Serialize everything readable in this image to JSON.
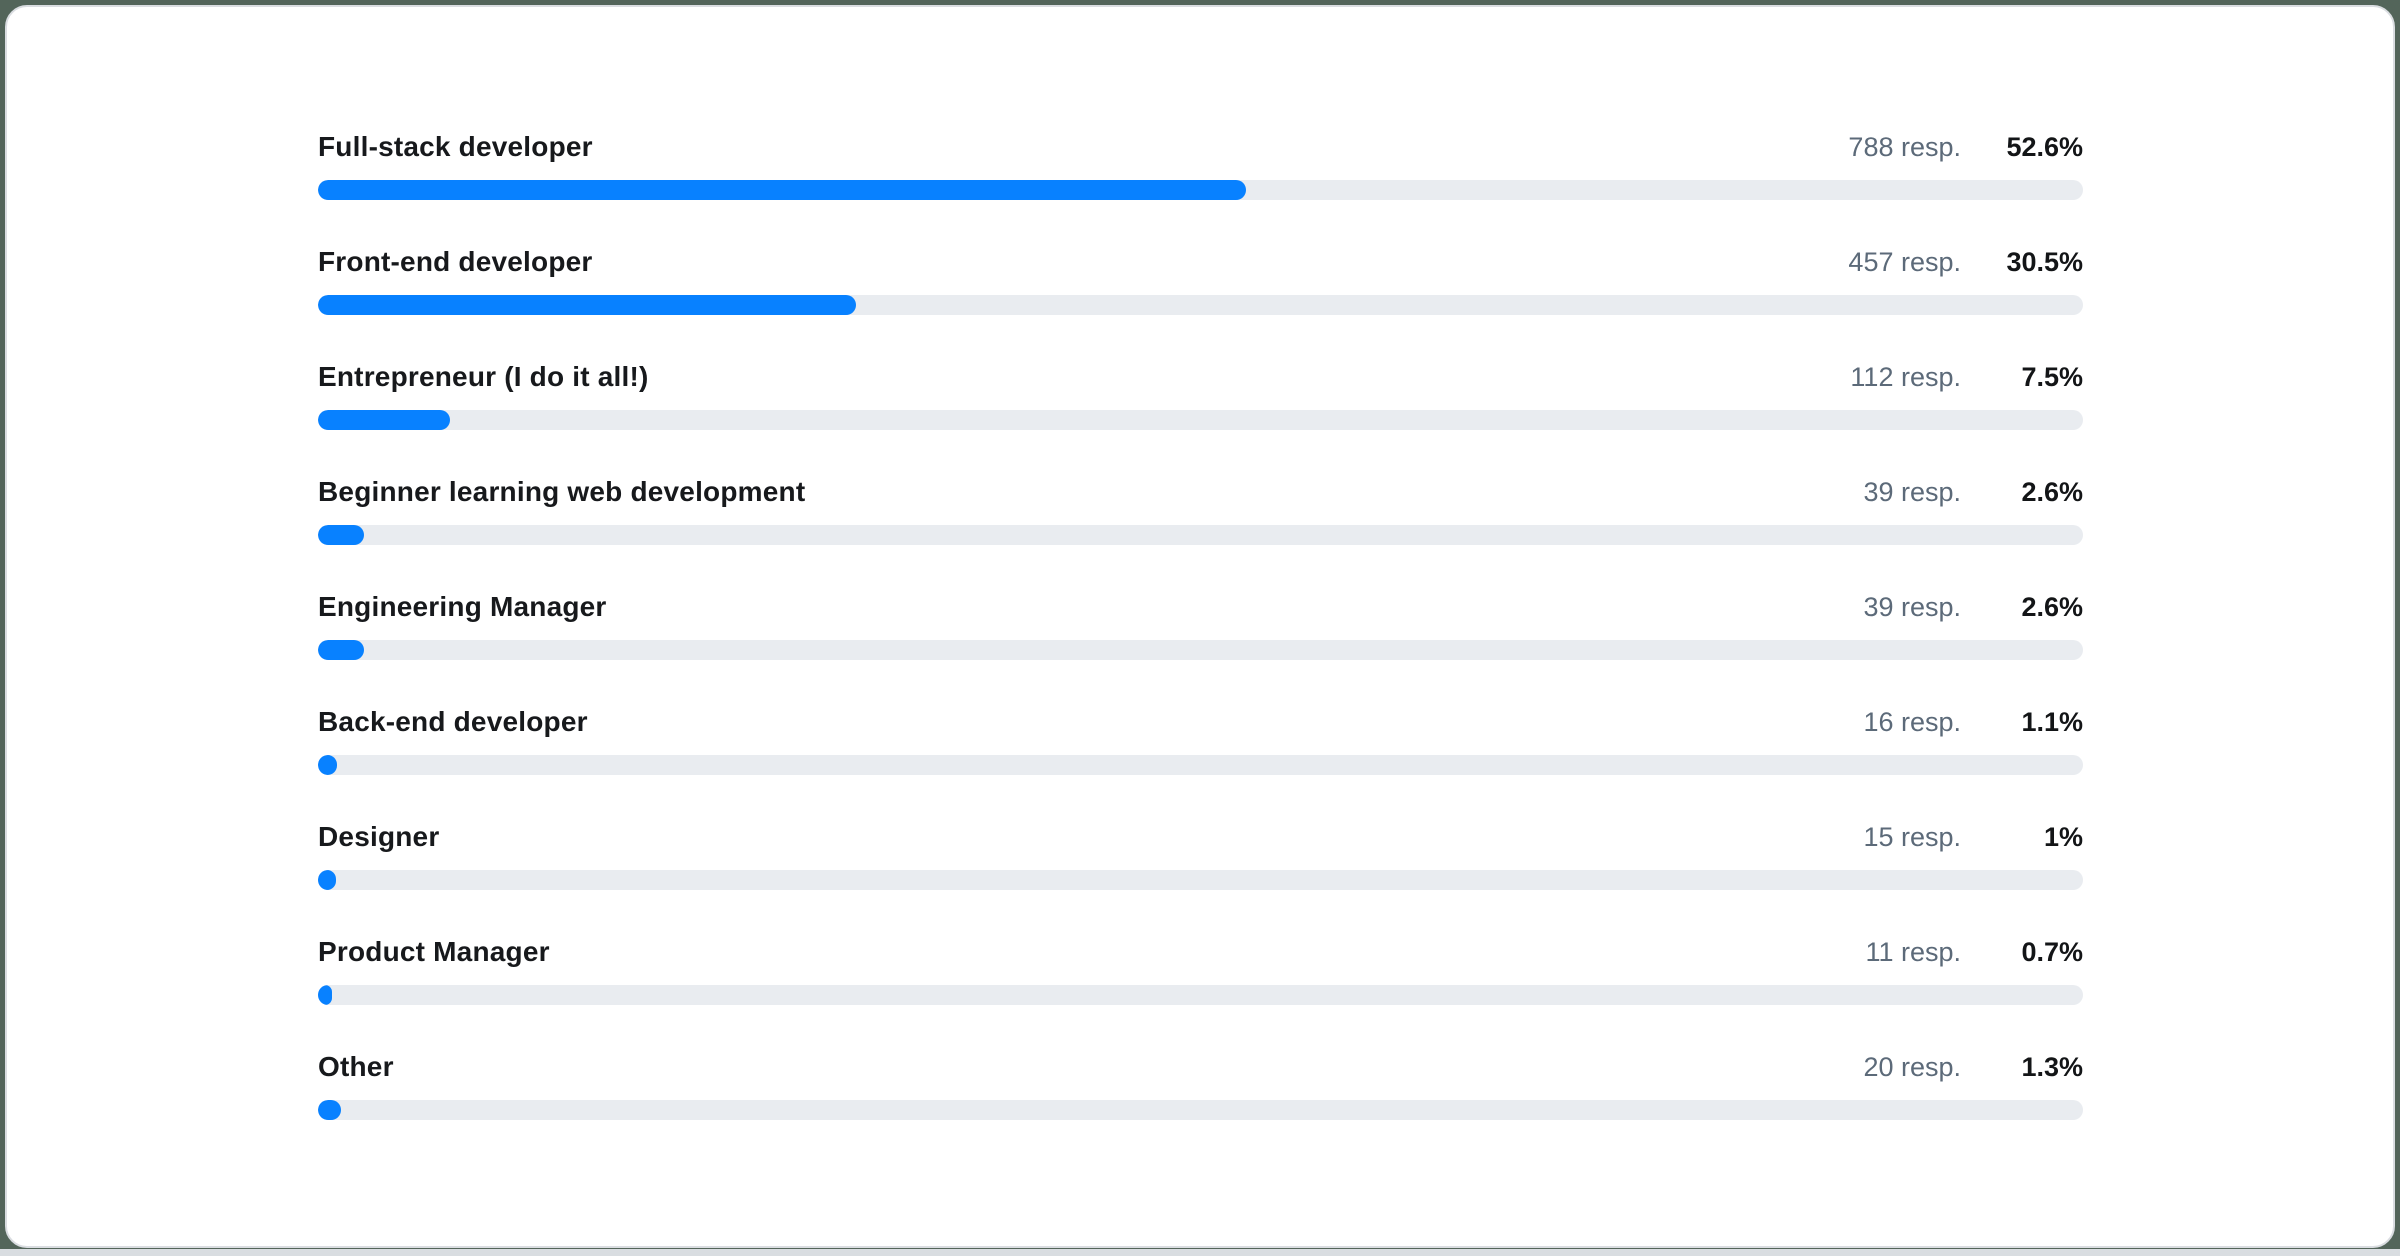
{
  "page": {
    "background_color": "#53655a",
    "card_background": "#ffffff",
    "card_border_color": "#dadde1",
    "bottom_strip_color": "#d9dde1"
  },
  "chart_data": {
    "type": "bar",
    "orientation": "horizontal",
    "title": "",
    "xlabel": "",
    "ylabel": "",
    "value_range": [
      0,
      100
    ],
    "grid": false,
    "legend": false,
    "value_suffix": "%",
    "count_suffix": " resp.",
    "colors": {
      "bar_fill": "#0881ff",
      "bar_track": "#e9ecf0",
      "label_text": "#17191c",
      "count_text": "#5c6a79",
      "percent_text": "#131517"
    },
    "categories": [
      "Full-stack developer",
      "Front-end developer",
      "Entrepreneur (I do it all!)",
      "Beginner learning web development",
      "Engineering Manager",
      "Back-end developer",
      "Designer",
      "Product Manager",
      "Other"
    ],
    "responses": [
      788,
      457,
      112,
      39,
      39,
      16,
      15,
      11,
      20
    ],
    "percent_values": [
      52.6,
      30.5,
      7.5,
      2.6,
      2.6,
      1.1,
      1.0,
      0.7,
      1.3
    ],
    "rows": [
      {
        "label": "Full-stack developer",
        "responses_label": "788 resp.",
        "percent_label": "52.6%",
        "percent": 52.6
      },
      {
        "label": "Front-end developer",
        "responses_label": "457 resp.",
        "percent_label": "30.5%",
        "percent": 30.5
      },
      {
        "label": "Entrepreneur (I do it all!)",
        "responses_label": "112 resp.",
        "percent_label": "7.5%",
        "percent": 7.5
      },
      {
        "label": "Beginner learning web development",
        "responses_label": "39 resp.",
        "percent_label": "2.6%",
        "percent": 2.6
      },
      {
        "label": "Engineering Manager",
        "responses_label": "39 resp.",
        "percent_label": "2.6%",
        "percent": 2.6
      },
      {
        "label": "Back-end developer",
        "responses_label": "16 resp.",
        "percent_label": "1.1%",
        "percent": 1.1
      },
      {
        "label": "Designer",
        "responses_label": "15 resp.",
        "percent_label": "1%",
        "percent": 1.0
      },
      {
        "label": "Product Manager",
        "responses_label": "11 resp.",
        "percent_label": "0.7%",
        "percent": 0.7
      },
      {
        "label": "Other",
        "responses_label": "20 resp.",
        "percent_label": "1.3%",
        "percent": 1.3
      }
    ]
  }
}
